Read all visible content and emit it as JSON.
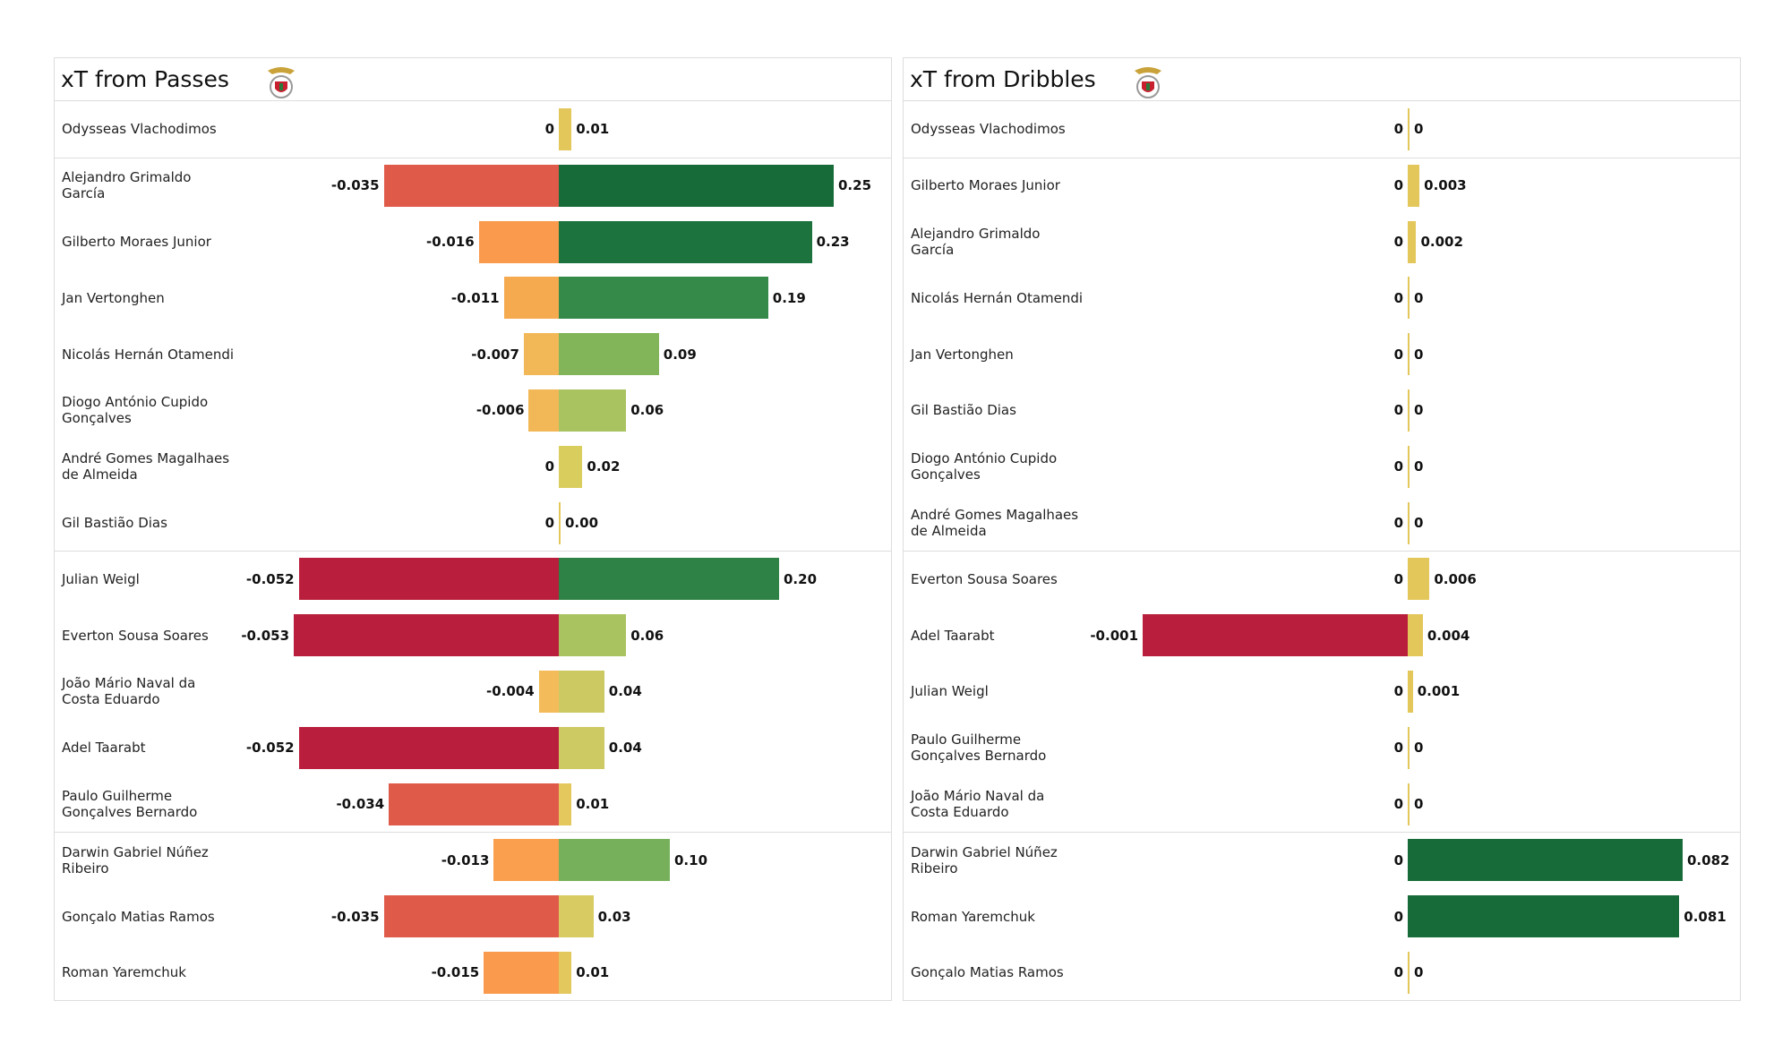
{
  "chart_data": [
    {
      "type": "diverging-bar",
      "title": "xT from Passes",
      "categories": [
        "Odysseas Vlachodimos",
        "Alejandro Grimaldo\nGarcía",
        "Gilberto Moraes Junior",
        "Jan Vertonghen",
        "Nicolás Hernán Otamendi",
        "Diogo António Cupido\nGonçalves",
        "André Gomes Magalhaes\nde Almeida",
        "Gil Bastião Dias",
        "Julian Weigl",
        "Everton Sousa Soares",
        "João Mário Naval da\nCosta Eduardo",
        "Adel Taarabt",
        "Paulo Guilherme\nGonçalves Bernardo",
        "Darwin Gabriel Núñez\nRibeiro",
        "Gonçalo Matias Ramos",
        "Roman Yaremchuk"
      ],
      "series": [
        {
          "values": [
            0,
            -0.035,
            -0.016,
            -0.011,
            -0.007,
            -0.006,
            0,
            0,
            -0.052,
            -0.053,
            -0.004,
            -0.052,
            -0.034,
            -0.013,
            -0.035,
            -0.015
          ],
          "colors": [
            "#f3bb5a",
            "#e05a49",
            "#f99a4d",
            "#f5aa4f",
            "#f2b857",
            "#f2b857",
            "#f3bb5a",
            "#f3bb5a",
            "#b91f3c",
            "#b91f3c",
            "#f3bb5a",
            "#b91f3c",
            "#e05a49",
            "#f99f4d",
            "#e05a49",
            "#f99a4c"
          ]
        },
        {
          "values": [
            0.01,
            0.25,
            0.23,
            0.19,
            0.09,
            0.06,
            0.02,
            0,
            0.2,
            0.06,
            0.04,
            0.04,
            0.01,
            0.1,
            0.03,
            0.01
          ],
          "value_labels": [
            "0.01",
            "0.25",
            "0.23",
            "0.19",
            "0.09",
            "0.06",
            "0.02",
            "0.00",
            "0.20",
            "0.06",
            "0.04",
            "0.04",
            "0.01",
            "0.10",
            "0.03",
            "0.01"
          ],
          "colors": [
            "#e3c75b",
            "#166b38",
            "#1c733d",
            "#358a4a",
            "#82b55a",
            "#a8c360",
            "#d9cd5e",
            "#e3c75b",
            "#2f8246",
            "#a8c360",
            "#ccc962",
            "#cdc963",
            "#e5c85d",
            "#77b05a",
            "#d8cb61",
            "#e3c85e"
          ]
        }
      ]
    },
    {
      "type": "diverging-bar",
      "title": "xT from Dribbles",
      "categories": [
        "Odysseas Vlachodimos",
        "Gilberto Moraes Junior",
        "Alejandro Grimaldo\nGarcía",
        "Nicolás Hernán Otamendi",
        "Jan Vertonghen",
        "Gil Bastião Dias",
        "Diogo António Cupido\nGonçalves",
        "André Gomes Magalhaes\nde Almeida",
        "Everton Sousa Soares",
        "Adel Taarabt",
        "Julian Weigl",
        "Paulo Guilherme\nGonçalves Bernardo",
        "João Mário Naval da\nCosta Eduardo",
        "Darwin Gabriel Núñez\nRibeiro",
        "Roman Yaremchuk",
        "Gonçalo Matias Ramos"
      ],
      "series": [
        {
          "values": [
            0,
            0,
            0,
            0,
            0,
            0,
            0,
            0,
            0,
            -0.001,
            0,
            0,
            0,
            0,
            0,
            0
          ],
          "colors": [
            "#f3bb5a",
            "#f3bb5a",
            "#f3bb5a",
            "#f3bb5a",
            "#f3bb5a",
            "#f3bb5a",
            "#f3bb5a",
            "#f3bb5a",
            "#f3bb5a",
            "#b91f3c",
            "#f3bb5a",
            "#f3bb5a",
            "#f3bb5a",
            "#f3bb5a",
            "#f3bb5a",
            "#f3bb5a"
          ]
        },
        {
          "values": [
            0,
            0.003,
            0.002,
            0,
            0,
            0,
            0,
            0,
            0.006,
            0.004,
            0.001,
            0,
            0,
            0.082,
            0.081,
            0
          ],
          "colors": [
            "#e3c75b",
            "#e3c75b",
            "#e3c75b",
            "#e3c75b",
            "#e3c75b",
            "#e3c75b",
            "#e3c75b",
            "#e3c75b",
            "#e3c75b",
            "#e3c75b",
            "#e3c75b",
            "#e3c75b",
            "#e3c75b",
            "#166b38",
            "#176b38",
            "#e3c75b"
          ]
        }
      ]
    }
  ]
}
